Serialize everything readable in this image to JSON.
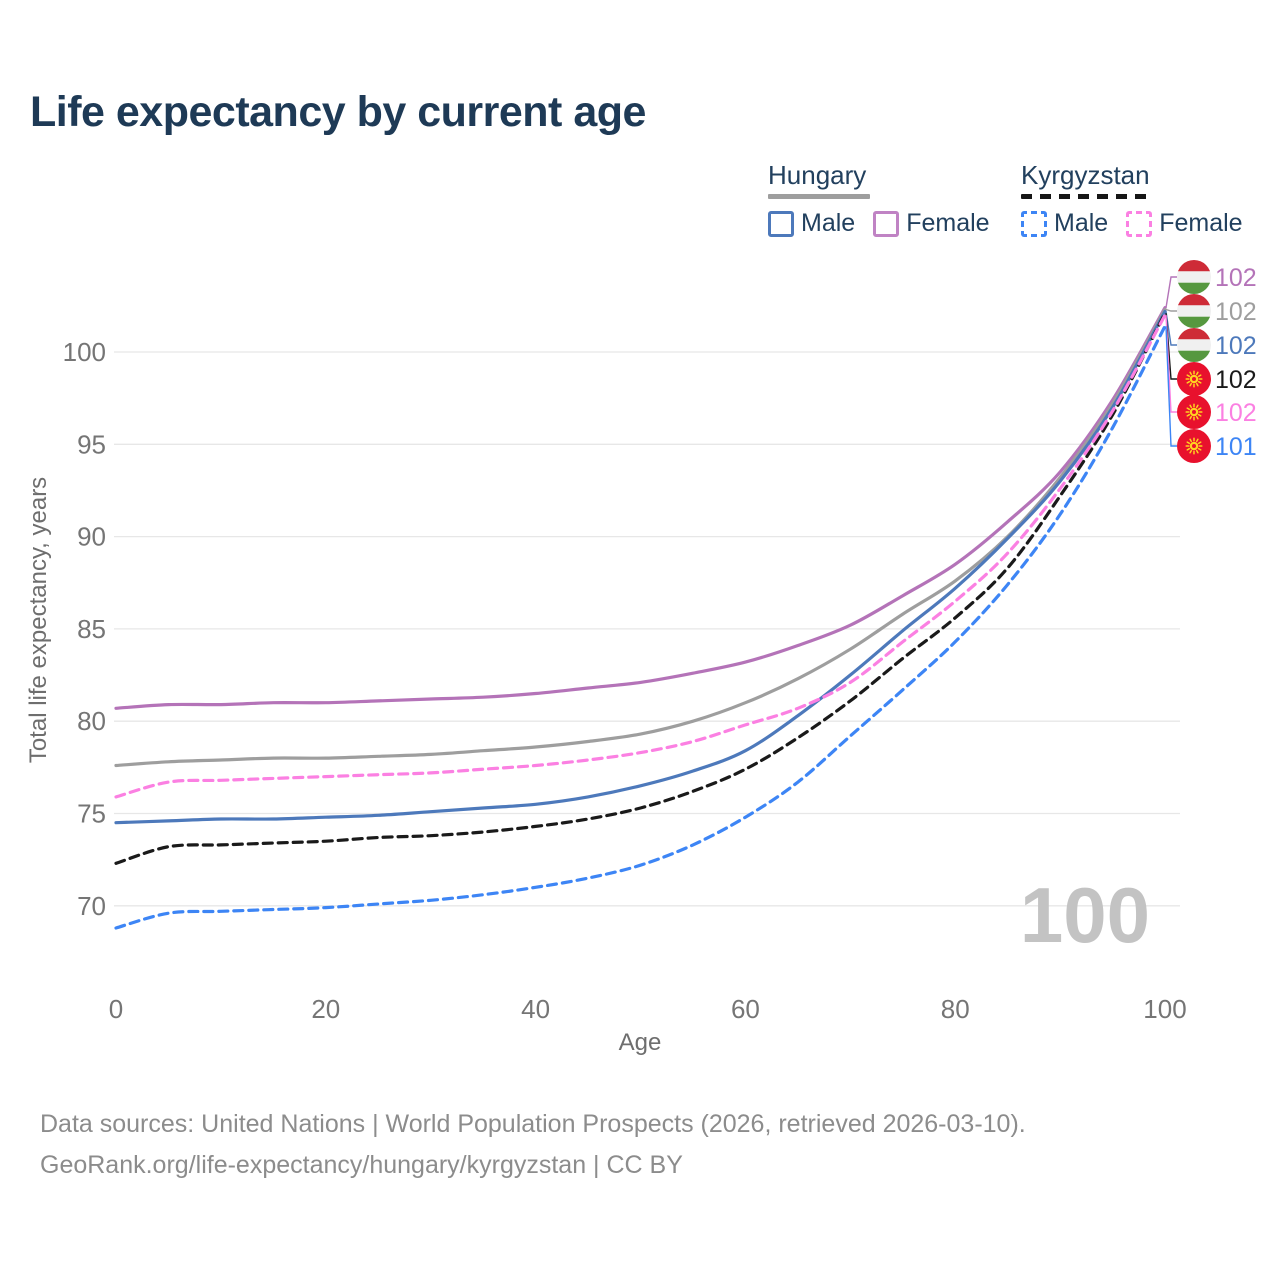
{
  "title": "Life expectancy by current age",
  "legend": {
    "groups": [
      {
        "label": "Hungary",
        "line_style": "solid",
        "underline_color": "#9e9e9e",
        "items": [
          {
            "label": "Male",
            "color": "#4d79bb"
          },
          {
            "label": "Female",
            "color": "#c083c4"
          }
        ]
      },
      {
        "label": "Kyrgyzstan",
        "line_style": "dashed",
        "underline_color": "#161616",
        "items": [
          {
            "label": "Male",
            "color": "#3d85f5"
          },
          {
            "label": "Female",
            "color": "#fb80e2"
          }
        ]
      }
    ]
  },
  "chart_data": {
    "type": "line",
    "title": "Life expectancy by current age",
    "xlabel": "Age",
    "ylabel": "Total life expectancy, years",
    "xlim": [
      0,
      100
    ],
    "ylim": [
      67,
      103
    ],
    "xticks": [
      0,
      20,
      40,
      60,
      80,
      100
    ],
    "yticks": [
      70,
      75,
      80,
      85,
      90,
      95,
      100
    ],
    "grid": "horizontal",
    "legend_position": "top-right",
    "hover_age_label": "100",
    "x": [
      0,
      5,
      10,
      15,
      20,
      25,
      30,
      35,
      40,
      45,
      50,
      55,
      60,
      65,
      70,
      75,
      80,
      85,
      90,
      95,
      100
    ],
    "series": [
      {
        "name": "Hungary Female",
        "color": "#b473b8",
        "dash": false,
        "flag": "hungary",
        "end_label": "102",
        "values": [
          80.7,
          80.9,
          80.9,
          81.0,
          81.0,
          81.1,
          81.2,
          81.3,
          81.5,
          81.8,
          82.1,
          82.6,
          83.2,
          84.1,
          85.2,
          86.8,
          88.5,
          90.8,
          93.5,
          97.4,
          102.4
        ]
      },
      {
        "name": "Hungary",
        "color": "#9e9e9e",
        "dash": false,
        "flag": "hungary",
        "end_label": "102",
        "values": [
          77.6,
          77.8,
          77.9,
          78.0,
          78.0,
          78.1,
          78.2,
          78.4,
          78.6,
          78.9,
          79.3,
          80.0,
          81.0,
          82.3,
          83.9,
          85.8,
          87.6,
          90.0,
          93.2,
          97.2,
          102.3
        ]
      },
      {
        "name": "Hungary Male",
        "color": "#4d79bb",
        "dash": false,
        "flag": "hungary",
        "end_label": "102",
        "values": [
          74.5,
          74.6,
          74.7,
          74.7,
          74.8,
          74.9,
          75.1,
          75.3,
          75.5,
          75.9,
          76.5,
          77.3,
          78.4,
          80.3,
          82.5,
          84.9,
          87.2,
          89.9,
          93.0,
          97.0,
          102.2
        ]
      },
      {
        "name": "Kyrgyzstan",
        "color": "#1a1a1a",
        "dash": true,
        "flag": "kyrgyzstan",
        "end_label": "102",
        "values": [
          72.3,
          73.2,
          73.3,
          73.4,
          73.5,
          73.7,
          73.8,
          74.0,
          74.3,
          74.7,
          75.3,
          76.2,
          77.4,
          79.1,
          81.1,
          83.4,
          85.6,
          88.3,
          92.2,
          96.6,
          102.1
        ]
      },
      {
        "name": "Kyrgyzstan Female",
        "color": "#fb80e2",
        "dash": true,
        "flag": "kyrgyzstan",
        "end_label": "102",
        "values": [
          75.9,
          76.7,
          76.8,
          76.9,
          77.0,
          77.1,
          77.2,
          77.4,
          77.6,
          77.9,
          78.3,
          78.9,
          79.8,
          80.7,
          82.1,
          84.3,
          86.5,
          89.1,
          92.6,
          96.8,
          102.0
        ]
      },
      {
        "name": "Kyrgyzstan Male",
        "color": "#3d85f5",
        "dash": true,
        "flag": "kyrgyzstan",
        "end_label": "101",
        "values": [
          68.8,
          69.6,
          69.7,
          69.8,
          69.9,
          70.1,
          70.3,
          70.6,
          71.0,
          71.5,
          72.2,
          73.3,
          74.8,
          76.7,
          79.2,
          81.7,
          84.3,
          87.4,
          91.2,
          95.9,
          101.4
        ]
      }
    ]
  },
  "flag_colors": {
    "hungary_red": "#ce2b37",
    "hungary_white": "#f0f0f0",
    "hungary_green": "#56983f",
    "kyrgyzstan_red": "#e8112d",
    "kyrgyzstan_yellow": "#ffd21f"
  },
  "footer": {
    "line1": "Data sources: United Nations | World Population Prospects (2026, retrieved 2026-03-10).",
    "line2": "GeoRank.org/life-expectancy/hungary/kyrgyzstan | CC BY"
  }
}
